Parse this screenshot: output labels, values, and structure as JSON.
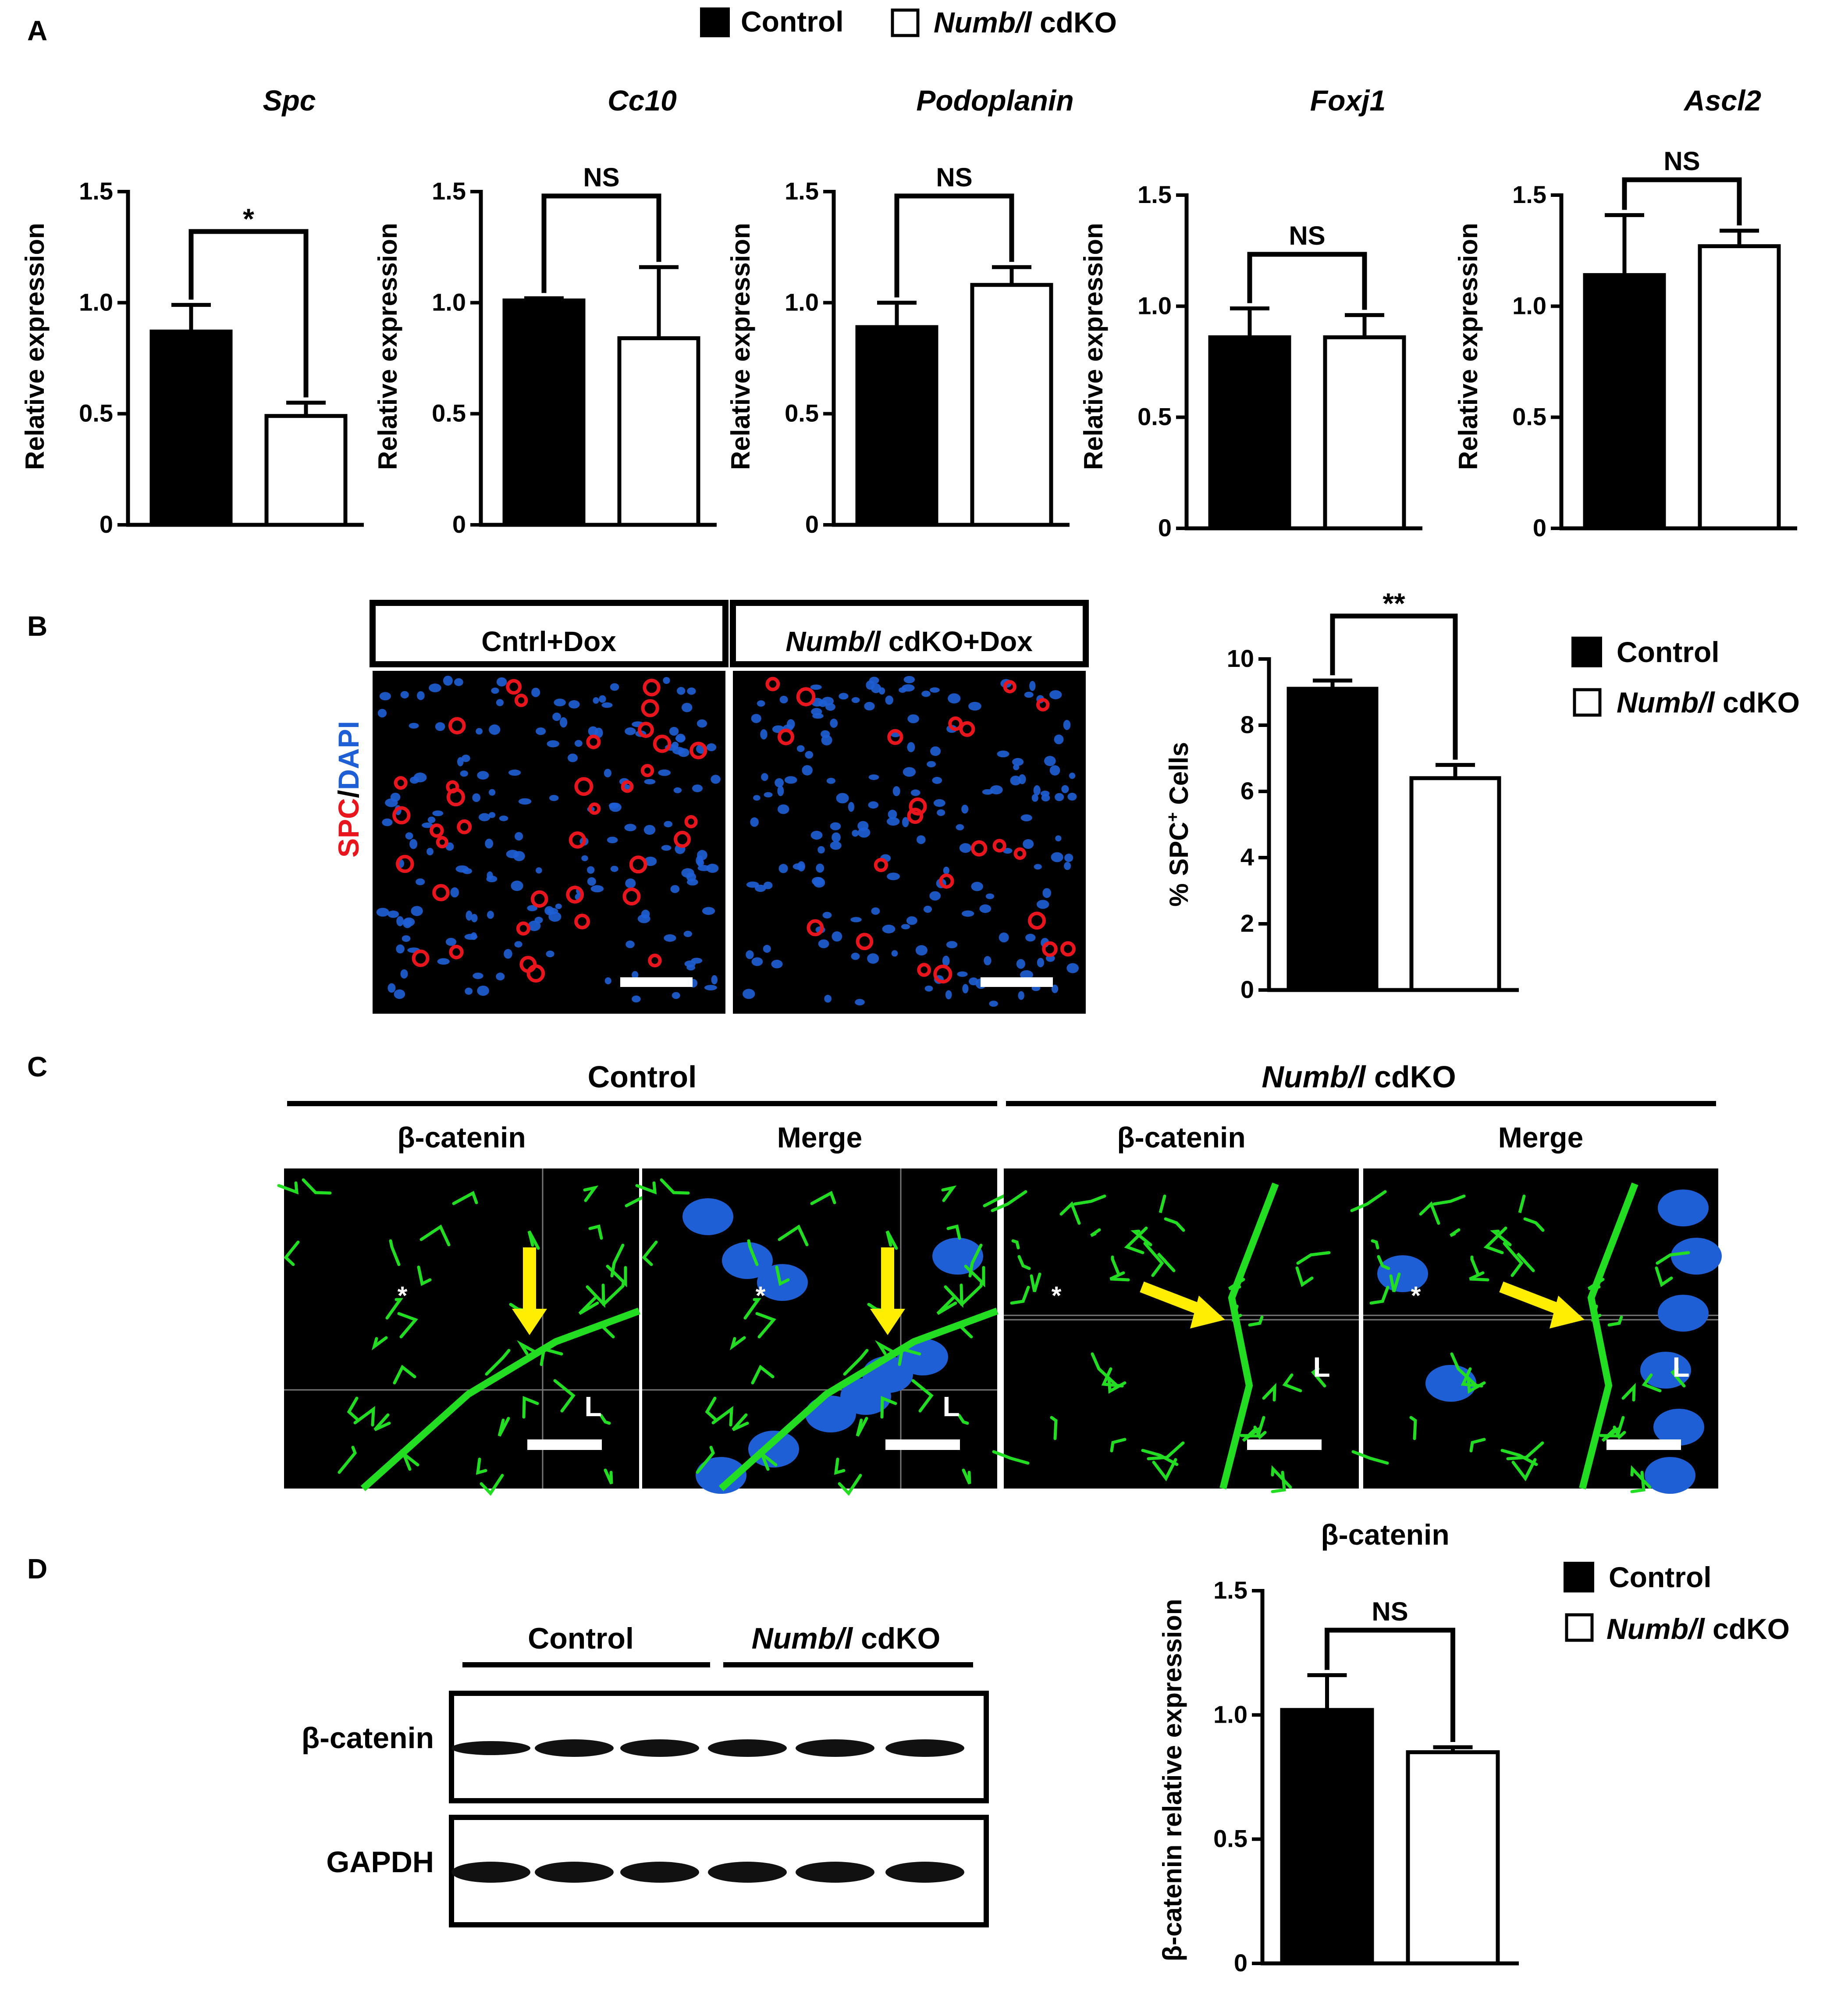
{
  "figure": {
    "panels": [
      {
        "id": "A",
        "label": "A"
      },
      {
        "id": "B",
        "label": "B"
      },
      {
        "id": "C",
        "label": "C"
      },
      {
        "id": "D",
        "label": "D"
      }
    ],
    "legend_top": {
      "control": "Control",
      "cdko_italic": "Numb/l",
      "cdko_rest": " cdKO"
    }
  },
  "colors": {
    "control_fill": "#000000",
    "cdko_fill": "#ffffff",
    "axis": "#000000",
    "arrow": "#ffee00",
    "scalebar": "#ffffff",
    "spc_red": "#e8151c",
    "dapi_blue": "#1f5fd6",
    "catenin_green": "#22dd22"
  },
  "chart_data": [
    {
      "panel": "A",
      "type": "bar",
      "title": "Spc",
      "ylabel": "Relative expression",
      "categories": [
        "Control",
        "Numb/l cdKO"
      ],
      "values": [
        0.87,
        0.49
      ],
      "errors": [
        0.12,
        0.06
      ],
      "ylim": [
        0,
        1.5
      ],
      "yticks": [
        "0",
        "0.5",
        "1.0",
        "1.5"
      ],
      "significance": "*"
    },
    {
      "panel": "A",
      "type": "bar",
      "title": "Cc10",
      "ylabel": "Relative expression",
      "categories": [
        "Control",
        "Numb/l cdKO"
      ],
      "values": [
        1.01,
        0.84
      ],
      "errors": [
        0.01,
        0.32
      ],
      "ylim": [
        0,
        1.5
      ],
      "yticks": [
        "0",
        "0.5",
        "1.0",
        "1.5"
      ],
      "significance": "NS"
    },
    {
      "panel": "A",
      "type": "bar",
      "title": "Podoplanin",
      "ylabel": "Relative expression",
      "categories": [
        "Control",
        "Numb/l cdKO"
      ],
      "values": [
        0.89,
        1.08
      ],
      "errors": [
        0.11,
        0.08
      ],
      "ylim": [
        0,
        1.5
      ],
      "yticks": [
        "0",
        "0.5",
        "1.0",
        "1.5"
      ],
      "significance": "NS"
    },
    {
      "panel": "A",
      "type": "bar",
      "title": "Foxj1",
      "ylabel": "Relative expression",
      "categories": [
        "Control",
        "Numb/l cdKO"
      ],
      "values": [
        0.86,
        0.86
      ],
      "errors": [
        0.13,
        0.1
      ],
      "ylim": [
        0,
        1.5
      ],
      "yticks": [
        "0",
        "0.5",
        "1.0",
        "1.5"
      ],
      "significance": "NS"
    },
    {
      "panel": "A",
      "type": "bar",
      "title": "Ascl2",
      "ylabel": "Relative expression",
      "categories": [
        "Control",
        "Numb/l cdKO"
      ],
      "values": [
        1.14,
        1.27
      ],
      "errors": [
        0.27,
        0.07
      ],
      "ylim": [
        0,
        1.5
      ],
      "yticks": [
        "0",
        "0.5",
        "1.0",
        "1.5"
      ],
      "significance": "NS"
    },
    {
      "panel": "B",
      "type": "bar",
      "title": "",
      "ylabel_main": "% SPC",
      "ylabel_sup": "+",
      "ylabel_end": " Cells",
      "categories": [
        "Control",
        "Numb/l cdKO"
      ],
      "values": [
        9.1,
        6.4
      ],
      "errors": [
        0.25,
        0.4
      ],
      "ylim": [
        0,
        10
      ],
      "yticks": [
        "0",
        "2",
        "4",
        "6",
        "8",
        "10"
      ],
      "significance": "**",
      "legend": [
        "Control",
        "Numb/l cdKO"
      ]
    },
    {
      "panel": "D",
      "type": "bar",
      "title": "β-catenin",
      "ylabel": "β-catenin relative expression",
      "categories": [
        "Control",
        "Numb/l cdKO"
      ],
      "values": [
        1.02,
        0.85
      ],
      "errors": [
        0.14,
        0.02
      ],
      "ylim": [
        0,
        1.5
      ],
      "yticks": [
        "0",
        "0.5",
        "1.0",
        "1.5"
      ],
      "significance": "NS",
      "legend": [
        "Control",
        "Numb/l cdKO"
      ]
    }
  ],
  "panel_b": {
    "image_titles": [
      {
        "italic": "",
        "rest": "Cntrl+Dox"
      },
      {
        "italic": "Numb/l",
        "rest": " cdKO+Dox"
      }
    ],
    "stain_label": {
      "spc": "SPC",
      "slash": "/",
      "dapi": "DAPI"
    }
  },
  "panel_c": {
    "group_headers": [
      {
        "italic": "",
        "rest": "Control"
      },
      {
        "italic": "Numb/l",
        "rest": " cdKO"
      }
    ],
    "column_labels": [
      "β-catenin",
      "Merge",
      "β-catenin",
      "Merge"
    ],
    "asterisk": "*",
    "lumen": "L"
  },
  "panel_d": {
    "group_labels": [
      {
        "italic": "",
        "rest": "Control"
      },
      {
        "italic": "Numb/l",
        "rest": " cdKO"
      }
    ],
    "blot_labels": [
      "β-catenin",
      "GAPDH"
    ]
  }
}
